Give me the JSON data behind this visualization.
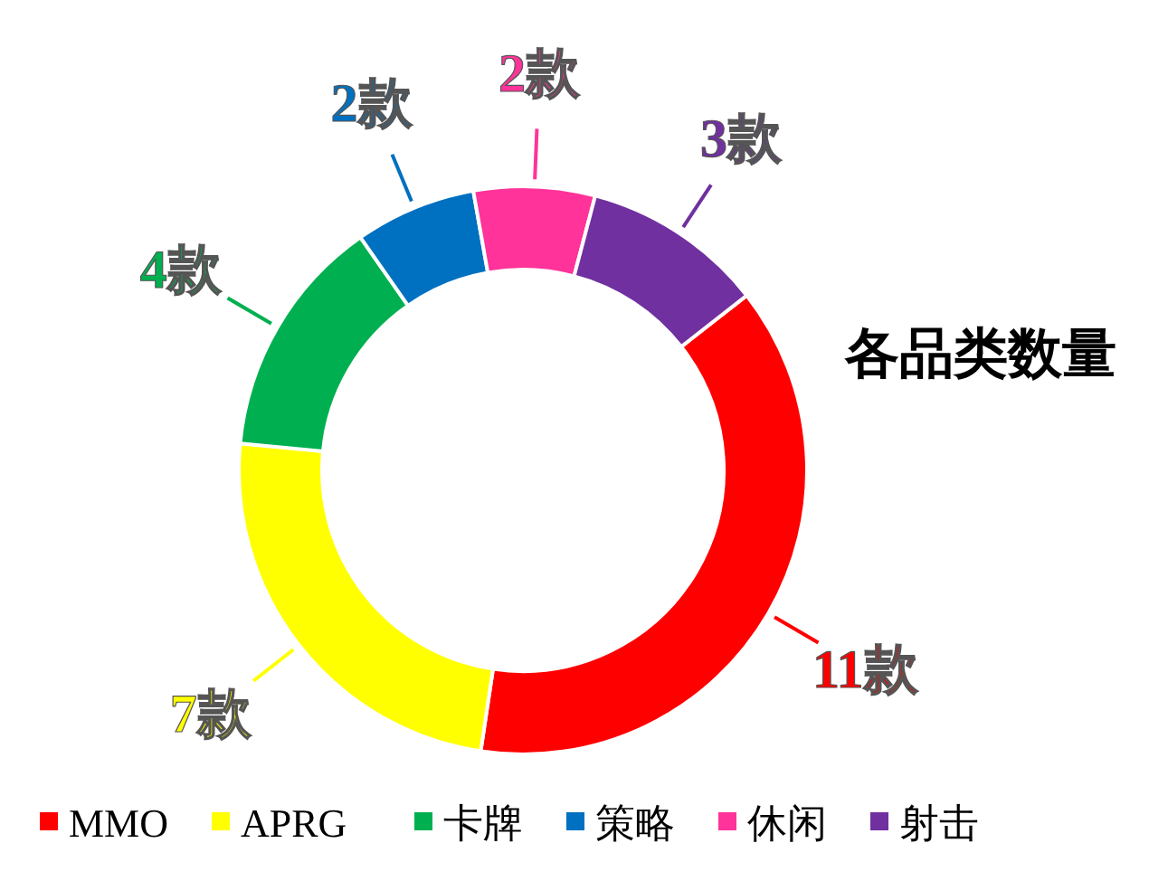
{
  "chart_data": {
    "type": "donut",
    "title": "各品类数量",
    "categories": [
      "MMO",
      "APRG",
      "卡牌",
      "策略",
      "休闲",
      "射击"
    ],
    "values": [
      11,
      7,
      4,
      2,
      2,
      3
    ],
    "colors": [
      "#ff0000",
      "#ffff00",
      "#00b050",
      "#0070c0",
      "#ff3399",
      "#7030a0"
    ],
    "value_labels": [
      "11款",
      "7款",
      "4款",
      "2款",
      "2款",
      "3款"
    ],
    "legend": "bottom"
  }
}
